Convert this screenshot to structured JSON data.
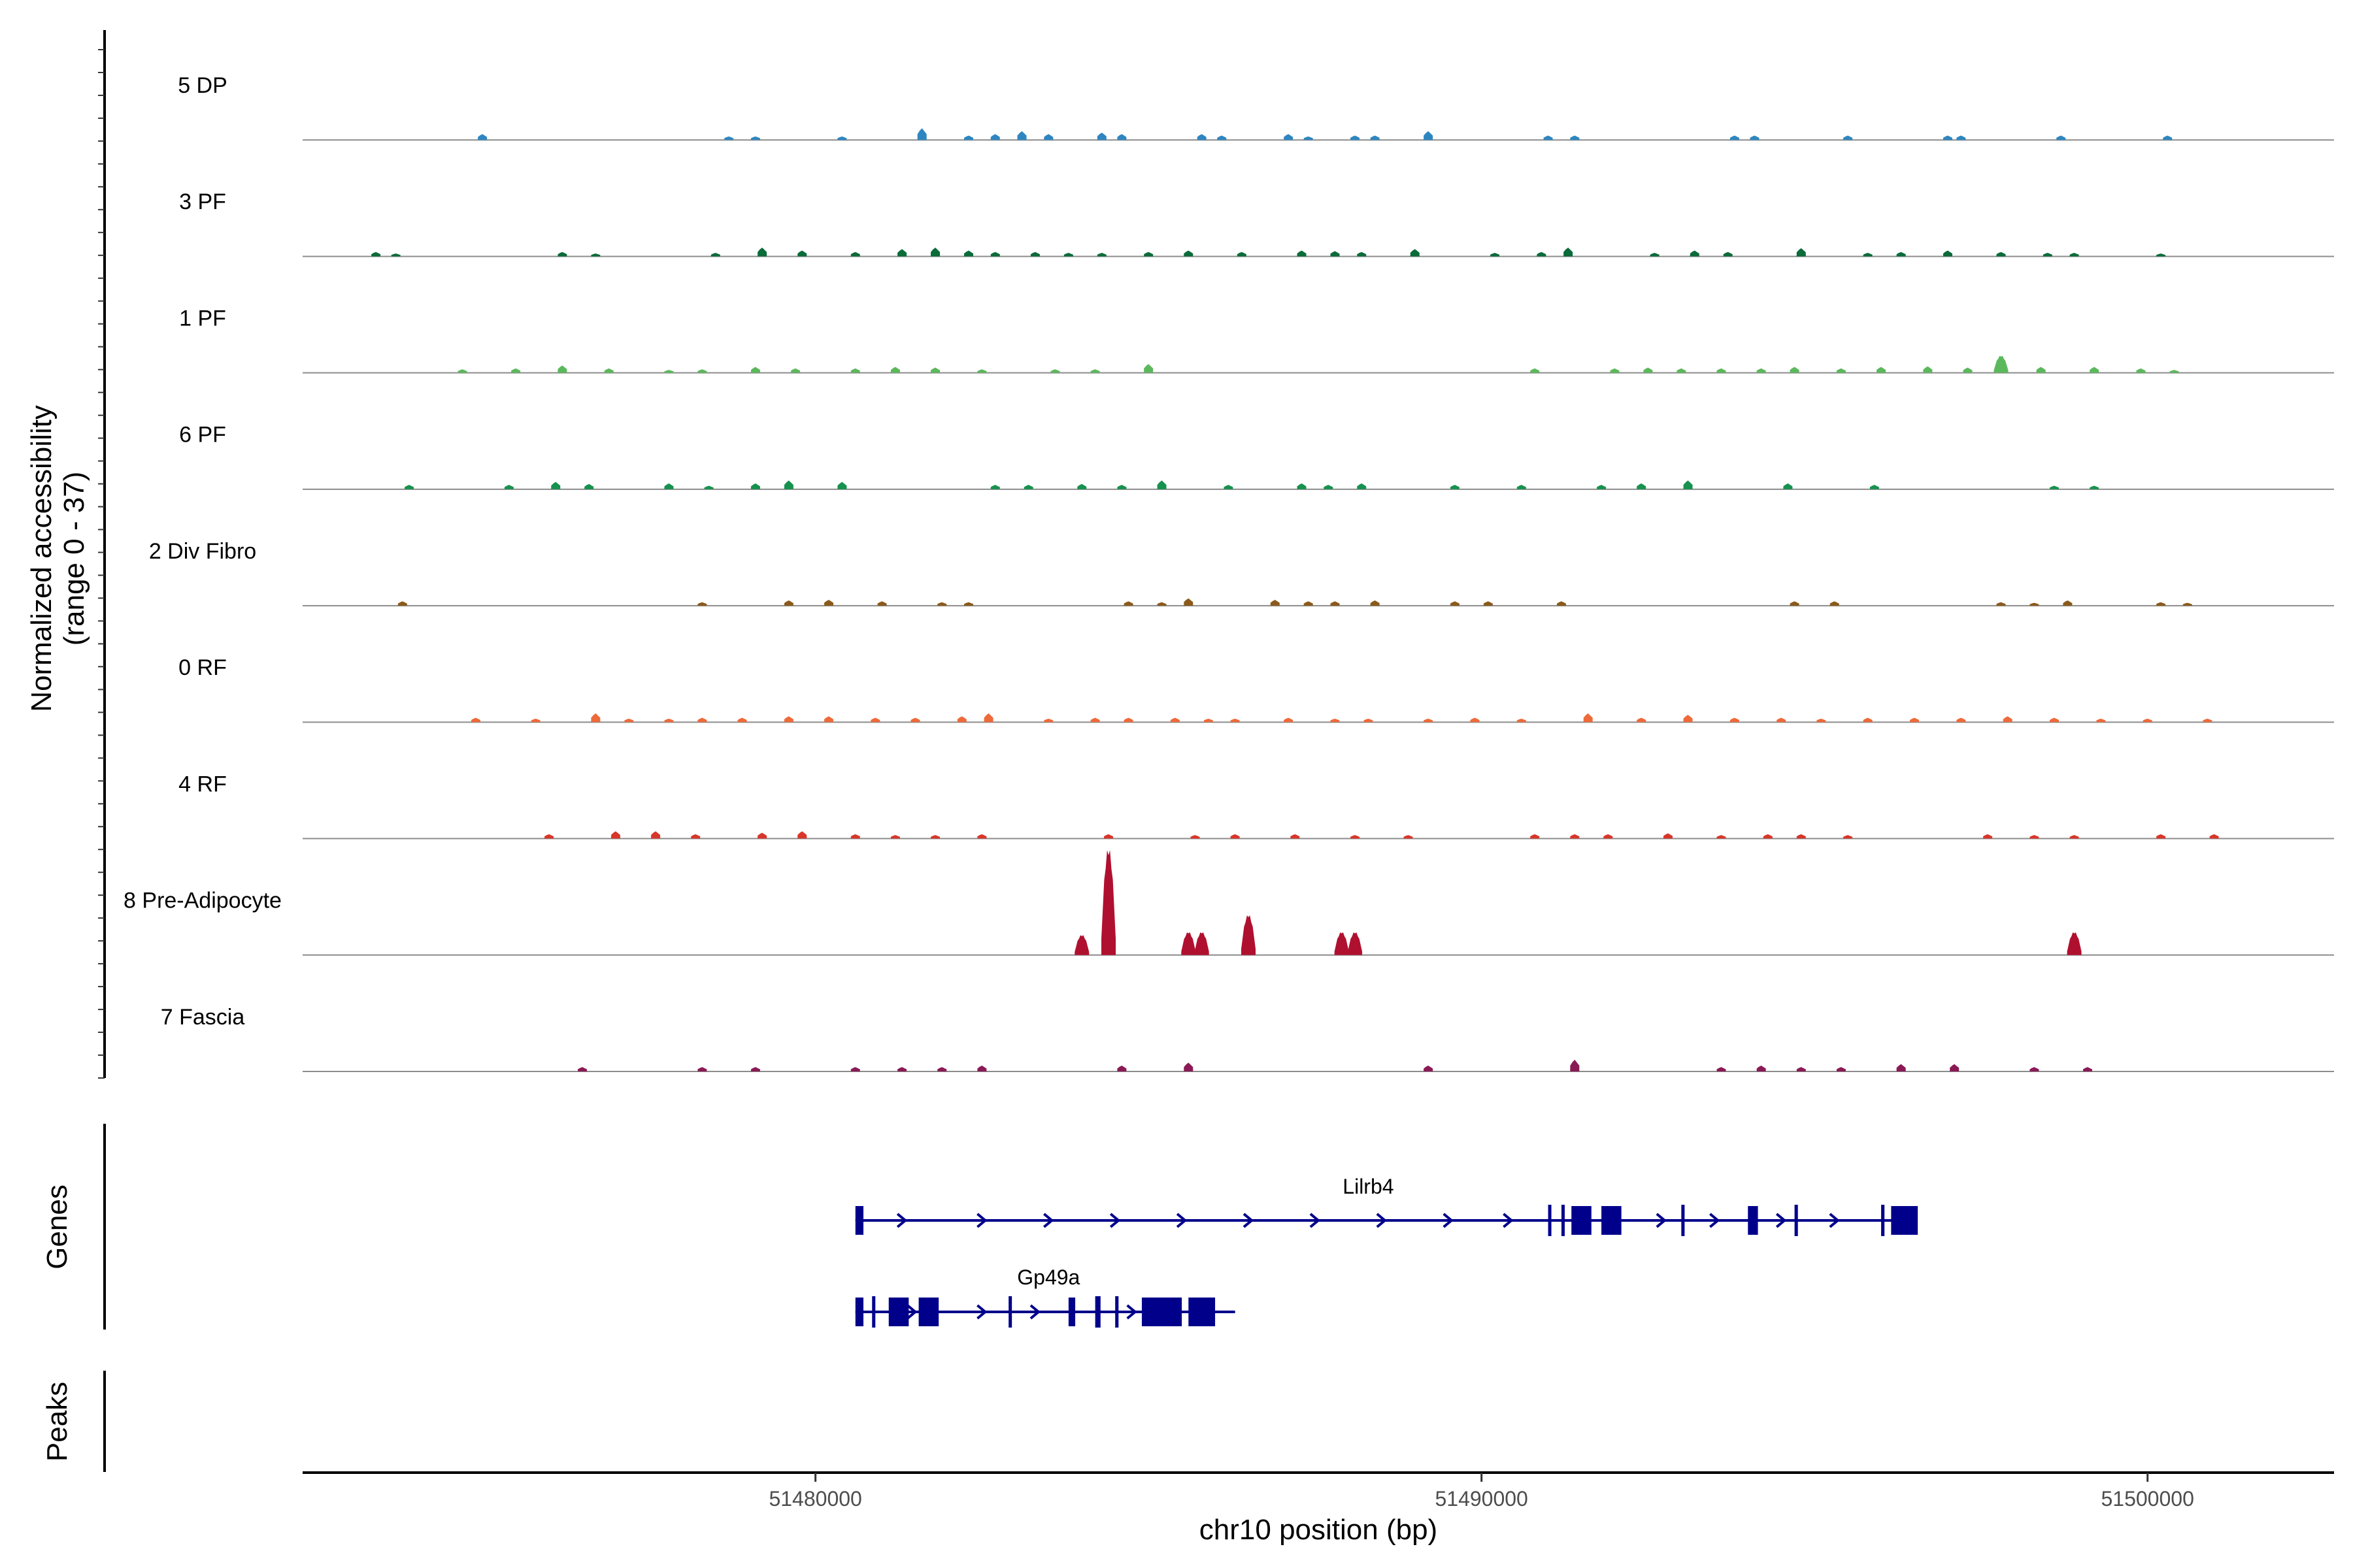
{
  "chart_data": {
    "type": "coverage",
    "xlabel": "chr10 position (bp)",
    "ylabel_line1": "Normalized accessibility",
    "ylabel_line2": "(range 0 - 37)",
    "yrange": [
      0,
      37
    ],
    "xlim": [
      51472300,
      51502800
    ],
    "xticks": [
      {
        "value": 51480000,
        "label": "51480000"
      },
      {
        "value": 51490000,
        "label": "51490000"
      },
      {
        "value": 51500000,
        "label": "51500000"
      }
    ],
    "tracks": [
      {
        "name": "5 DP",
        "color": "#2E86C1",
        "peaks": [
          [
            51475000,
            2
          ],
          [
            51478700,
            1.2
          ],
          [
            51479100,
            1.2
          ],
          [
            51480400,
            1.2
          ],
          [
            51481600,
            4
          ],
          [
            51482300,
            1.5
          ],
          [
            51482700,
            2
          ],
          [
            51483100,
            3
          ],
          [
            51483500,
            2
          ],
          [
            51484300,
            2.5
          ],
          [
            51484600,
            2
          ],
          [
            51485800,
            2
          ],
          [
            51486100,
            1.5
          ],
          [
            51487100,
            2
          ],
          [
            51487400,
            1.2
          ],
          [
            51488100,
            1.5
          ],
          [
            51488400,
            1.5
          ],
          [
            51489200,
            3
          ],
          [
            51491000,
            1.5
          ],
          [
            51491400,
            1.5
          ],
          [
            51493800,
            1.5
          ],
          [
            51494100,
            1.5
          ],
          [
            51495500,
            1.5
          ],
          [
            51497000,
            1.5
          ],
          [
            51497200,
            1.5
          ],
          [
            51498700,
            1.5
          ],
          [
            51500300,
            1.5
          ]
        ]
      },
      {
        "name": "3 PF",
        "color": "#0B6B3A",
        "peaks": [
          [
            51473400,
            1.5
          ],
          [
            51473700,
            1
          ],
          [
            51476200,
            1.5
          ],
          [
            51476700,
            1
          ],
          [
            51478500,
            1.2
          ],
          [
            51479200,
            3
          ],
          [
            51479800,
            2
          ],
          [
            51480600,
            1.5
          ],
          [
            51481300,
            2.5
          ],
          [
            51481800,
            3
          ],
          [
            51482300,
            2
          ],
          [
            51482700,
            1.5
          ],
          [
            51483300,
            1.5
          ],
          [
            51483800,
            1.2
          ],
          [
            51484300,
            1.2
          ],
          [
            51485000,
            1.5
          ],
          [
            51485600,
            2
          ],
          [
            51486400,
            1.5
          ],
          [
            51487300,
            2
          ],
          [
            51487800,
            1.8
          ],
          [
            51488200,
            1.5
          ],
          [
            51489000,
            2.5
          ],
          [
            51490200,
            1.2
          ],
          [
            51490900,
            1.5
          ],
          [
            51491300,
            3
          ],
          [
            51492600,
            1.2
          ],
          [
            51493200,
            2
          ],
          [
            51493700,
            1.5
          ],
          [
            51494800,
            2.8
          ],
          [
            51495800,
            1.2
          ],
          [
            51496300,
            1.5
          ],
          [
            51497000,
            2
          ],
          [
            51497800,
            1.5
          ],
          [
            51498500,
            1.2
          ],
          [
            51498900,
            1.2
          ],
          [
            51500200,
            1
          ]
        ]
      },
      {
        "name": "1 PF",
        "color": "#5CB85C",
        "peaks": [
          [
            51474700,
            1.2
          ],
          [
            51475500,
            1.5
          ],
          [
            51476200,
            2.5
          ],
          [
            51476900,
            1.5
          ],
          [
            51477800,
            1
          ],
          [
            51478300,
            1.2
          ],
          [
            51479100,
            2
          ],
          [
            51479700,
            1.5
          ],
          [
            51480600,
            1.5
          ],
          [
            51481200,
            2
          ],
          [
            51481800,
            1.8
          ],
          [
            51482500,
            1.2
          ],
          [
            51483600,
            1.2
          ],
          [
            51484200,
            1.2
          ],
          [
            51485000,
            3
          ],
          [
            51490800,
            1.5
          ],
          [
            51492000,
            1.5
          ],
          [
            51492500,
            1.8
          ],
          [
            51493000,
            1.5
          ],
          [
            51493600,
            1.5
          ],
          [
            51494200,
            1.5
          ],
          [
            51494700,
            2
          ],
          [
            51495400,
            1.5
          ],
          [
            51496000,
            2
          ],
          [
            51496700,
            2.2
          ],
          [
            51497300,
            1.8
          ],
          [
            51497800,
            6
          ],
          [
            51498400,
            2
          ],
          [
            51499200,
            2
          ],
          [
            51499900,
            1.5
          ],
          [
            51500400,
            1
          ]
        ]
      },
      {
        "name": "6 PF",
        "color": "#16924E",
        "peaks": [
          [
            51473900,
            1.5
          ],
          [
            51475400,
            1.5
          ],
          [
            51476100,
            2.5
          ],
          [
            51476600,
            1.8
          ],
          [
            51477800,
            2
          ],
          [
            51478400,
            1.2
          ],
          [
            51479100,
            2
          ],
          [
            51479600,
            3
          ],
          [
            51480400,
            2.5
          ],
          [
            51482700,
            1.5
          ],
          [
            51483200,
            1.5
          ],
          [
            51484000,
            1.8
          ],
          [
            51484600,
            1.5
          ],
          [
            51485200,
            3
          ],
          [
            51486200,
            1.5
          ],
          [
            51487300,
            2
          ],
          [
            51487700,
            1.5
          ],
          [
            51488200,
            2
          ],
          [
            51489600,
            1.5
          ],
          [
            51490600,
            1.5
          ],
          [
            51491800,
            1.5
          ],
          [
            51492400,
            2
          ],
          [
            51493100,
            3
          ],
          [
            51494600,
            2
          ],
          [
            51495900,
            1.5
          ],
          [
            51498600,
            1.2
          ],
          [
            51499200,
            1.2
          ]
        ]
      },
      {
        "name": "2 Div Fibro",
        "color": "#8B5A1B",
        "peaks": [
          [
            51473800,
            1.5
          ],
          [
            51478300,
            1.2
          ],
          [
            51479600,
            1.8
          ],
          [
            51480200,
            2
          ],
          [
            51481000,
            1.5
          ],
          [
            51481900,
            1.2
          ],
          [
            51482300,
            1.2
          ],
          [
            51484700,
            1.5
          ],
          [
            51485200,
            1.2
          ],
          [
            51485600,
            2.5
          ],
          [
            51486900,
            2
          ],
          [
            51487400,
            1.5
          ],
          [
            51487800,
            1.5
          ],
          [
            51488400,
            1.8
          ],
          [
            51489600,
            1.5
          ],
          [
            51490100,
            1.5
          ],
          [
            51491200,
            1.5
          ],
          [
            51494700,
            1.5
          ],
          [
            51495300,
            1.5
          ],
          [
            51497800,
            1.2
          ],
          [
            51498300,
            1
          ],
          [
            51498800,
            1.8
          ],
          [
            51500200,
            1.2
          ],
          [
            51500600,
            1
          ]
        ]
      },
      {
        "name": "0 RF",
        "color": "#EE6A3A",
        "peaks": [
          [
            51474900,
            1.5
          ],
          [
            51475800,
            1.2
          ],
          [
            51476700,
            3
          ],
          [
            51477200,
            1.2
          ],
          [
            51477800,
            1.2
          ],
          [
            51478300,
            1.5
          ],
          [
            51478900,
            1.5
          ],
          [
            51479600,
            2
          ],
          [
            51480200,
            2
          ],
          [
            51480900,
            1.5
          ],
          [
            51481500,
            1.5
          ],
          [
            51482200,
            2
          ],
          [
            51482600,
            3
          ],
          [
            51483500,
            1.2
          ],
          [
            51484200,
            1.5
          ],
          [
            51484700,
            1.5
          ],
          [
            51485400,
            1.5
          ],
          [
            51485900,
            1.2
          ],
          [
            51486300,
            1.2
          ],
          [
            51487100,
            1.5
          ],
          [
            51487800,
            1.2
          ],
          [
            51488300,
            1.2
          ],
          [
            51489200,
            1.2
          ],
          [
            51489900,
            1.5
          ],
          [
            51490600,
            1.2
          ],
          [
            51491600,
            3
          ],
          [
            51492400,
            1.5
          ],
          [
            51493100,
            2.5
          ],
          [
            51493800,
            1.5
          ],
          [
            51494500,
            1.5
          ],
          [
            51495100,
            1.2
          ],
          [
            51495800,
            1.5
          ],
          [
            51496500,
            1.5
          ],
          [
            51497200,
            1.5
          ],
          [
            51497900,
            2
          ],
          [
            51498600,
            1.5
          ],
          [
            51499300,
            1.2
          ],
          [
            51500000,
            1.2
          ],
          [
            51500900,
            1.2
          ]
        ]
      },
      {
        "name": "4 RF",
        "color": "#D8362A",
        "peaks": [
          [
            51476000,
            1.5
          ],
          [
            51477000,
            2.5
          ],
          [
            51477600,
            2.5
          ],
          [
            51478200,
            1.5
          ],
          [
            51479200,
            2
          ],
          [
            51479800,
            2.5
          ],
          [
            51480600,
            1.5
          ],
          [
            51481200,
            1.2
          ],
          [
            51481800,
            1.2
          ],
          [
            51482500,
            1.5
          ],
          [
            51484400,
            1.5
          ],
          [
            51485700,
            1.2
          ],
          [
            51486300,
            1.5
          ],
          [
            51487200,
            1.5
          ],
          [
            51488100,
            1.2
          ],
          [
            51488900,
            1.2
          ],
          [
            51490800,
            1.5
          ],
          [
            51491400,
            1.5
          ],
          [
            51491900,
            1.5
          ],
          [
            51492800,
            1.8
          ],
          [
            51493600,
            1.2
          ],
          [
            51494300,
            1.5
          ],
          [
            51494800,
            1.5
          ],
          [
            51495500,
            1.2
          ],
          [
            51497600,
            1.5
          ],
          [
            51498300,
            1.2
          ],
          [
            51498900,
            1.2
          ],
          [
            51500200,
            1.5
          ],
          [
            51501000,
            1.5
          ]
        ]
      },
      {
        "name": "8 Pre-Adipocyte",
        "color": "#B0102F",
        "peaks": [
          [
            51484400,
            37
          ],
          [
            51484000,
            7
          ],
          [
            51485600,
            8
          ],
          [
            51485800,
            8
          ],
          [
            51486500,
            14
          ],
          [
            51487900,
            8
          ],
          [
            51488100,
            8
          ],
          [
            51498900,
            8
          ]
        ]
      },
      {
        "name": "7 Fascia",
        "color": "#8A1A55",
        "peaks": [
          [
            51476500,
            1.5
          ],
          [
            51478300,
            1.5
          ],
          [
            51479100,
            1.5
          ],
          [
            51480600,
            1.5
          ],
          [
            51481300,
            1.5
          ],
          [
            51481900,
            1.5
          ],
          [
            51482500,
            2
          ],
          [
            51484600,
            2
          ],
          [
            51485600,
            3
          ],
          [
            51489200,
            2
          ],
          [
            51491400,
            4
          ],
          [
            51493600,
            1.5
          ],
          [
            51494200,
            2
          ],
          [
            51494800,
            1.5
          ],
          [
            51495400,
            1.5
          ],
          [
            51496300,
            2.5
          ],
          [
            51497100,
            2.5
          ],
          [
            51498300,
            1.5
          ],
          [
            51499100,
            1.5
          ]
        ]
      }
    ],
    "genes": [
      {
        "name": "Lilrb4",
        "start": 51480600,
        "end": 51496500,
        "exons": [
          [
            51480600,
            51480720
          ],
          [
            51491000,
            51491040
          ],
          [
            51491200,
            51491240
          ],
          [
            51491350,
            51491650
          ],
          [
            51491800,
            51492100
          ],
          [
            51493000,
            51493040
          ],
          [
            51494000,
            51494150
          ],
          [
            51494700,
            51494750
          ],
          [
            51496000,
            51496050
          ],
          [
            51496150,
            51496550
          ]
        ],
        "arrows": [
          51481300,
          51482500,
          51483500,
          51484500,
          51485500,
          51486500,
          51487500,
          51488500,
          51489500,
          51490400,
          51492700,
          51493500,
          51494500,
          51495300
        ]
      },
      {
        "name": "Gp49a",
        "start": 51480600,
        "end": 51486300,
        "exons": [
          [
            51480600,
            51480720
          ],
          [
            51480850,
            51480880
          ],
          [
            51481100,
            51481400
          ],
          [
            51481550,
            51481850
          ],
          [
            51482900,
            51482940
          ],
          [
            51483800,
            51483900
          ],
          [
            51484200,
            51484280
          ],
          [
            51484500,
            51484550
          ],
          [
            51484900,
            51485500
          ],
          [
            51485600,
            51486000
          ]
        ],
        "arrows": [
          51481450,
          51482500,
          51483300,
          51484750
        ]
      }
    ],
    "genes_label": "Genes",
    "peaks_label": "Peaks"
  }
}
